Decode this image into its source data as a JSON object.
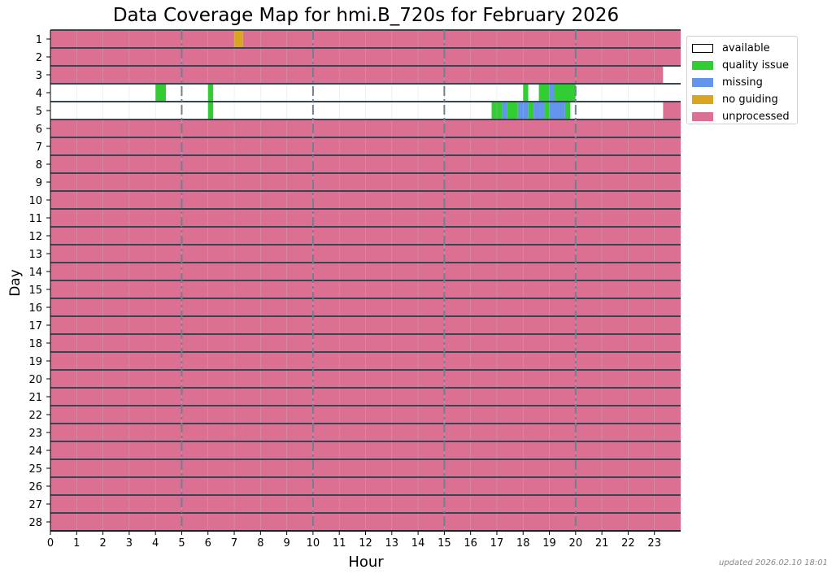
{
  "chart_data": {
    "type": "heatmap",
    "title": "Data Coverage Map for hmi.B_720s for February 2026",
    "xlabel": "Hour",
    "ylabel": "Day",
    "xlim": [
      0,
      24
    ],
    "x_ticks": [
      "0",
      "1",
      "2",
      "3",
      "4",
      "5",
      "6",
      "7",
      "8",
      "9",
      "10",
      "11",
      "12",
      "13",
      "14",
      "15",
      "16",
      "17",
      "18",
      "19",
      "20",
      "21",
      "22",
      "23"
    ],
    "days": [
      "1",
      "2",
      "3",
      "4",
      "5",
      "6",
      "7",
      "8",
      "9",
      "10",
      "11",
      "12",
      "13",
      "14",
      "15",
      "16",
      "17",
      "18",
      "19",
      "20",
      "21",
      "22",
      "23",
      "24",
      "25",
      "26",
      "27",
      "28"
    ],
    "legend": [
      {
        "name": "available",
        "color": "#ffffff"
      },
      {
        "name": "quality issue",
        "color": "#32cd32"
      },
      {
        "name": "missing",
        "color": "#6495ed"
      },
      {
        "name": "no guiding",
        "color": "#daa520"
      },
      {
        "name": "unprocessed",
        "color": "#db7093"
      }
    ],
    "legend_position": "upper right, outside plot",
    "guide_lines_hours": [
      5,
      10,
      15,
      20
    ],
    "segments": [
      {
        "day": 1,
        "start": 0,
        "end": 7.0,
        "status": "unprocessed"
      },
      {
        "day": 1,
        "start": 7.0,
        "end": 7.33,
        "status": "no guiding"
      },
      {
        "day": 1,
        "start": 7.33,
        "end": 24,
        "status": "unprocessed"
      },
      {
        "day": 2,
        "start": 0,
        "end": 24,
        "status": "unprocessed"
      },
      {
        "day": 3,
        "start": 0,
        "end": 23.33,
        "status": "unprocessed"
      },
      {
        "day": 3,
        "start": 23.33,
        "end": 24,
        "status": "available"
      },
      {
        "day": 4,
        "start": 0,
        "end": 4.0,
        "status": "available"
      },
      {
        "day": 4,
        "start": 4.0,
        "end": 4.4,
        "status": "quality issue"
      },
      {
        "day": 4,
        "start": 4.4,
        "end": 6.0,
        "status": "available"
      },
      {
        "day": 4,
        "start": 6.0,
        "end": 6.2,
        "status": "quality issue"
      },
      {
        "day": 4,
        "start": 6.2,
        "end": 18.0,
        "status": "available"
      },
      {
        "day": 4,
        "start": 18.0,
        "end": 18.2,
        "status": "quality issue"
      },
      {
        "day": 4,
        "start": 18.2,
        "end": 18.6,
        "status": "available"
      },
      {
        "day": 4,
        "start": 18.6,
        "end": 19.0,
        "status": "quality issue"
      },
      {
        "day": 4,
        "start": 19.0,
        "end": 19.2,
        "status": "missing"
      },
      {
        "day": 4,
        "start": 19.2,
        "end": 20.0,
        "status": "quality issue"
      },
      {
        "day": 4,
        "start": 20.0,
        "end": 24,
        "status": "available"
      },
      {
        "day": 5,
        "start": 0,
        "end": 6.0,
        "status": "available"
      },
      {
        "day": 5,
        "start": 6.0,
        "end": 6.2,
        "status": "quality issue"
      },
      {
        "day": 5,
        "start": 6.2,
        "end": 16.8,
        "status": "available"
      },
      {
        "day": 5,
        "start": 16.8,
        "end": 17.2,
        "status": "quality issue"
      },
      {
        "day": 5,
        "start": 17.2,
        "end": 17.4,
        "status": "missing"
      },
      {
        "day": 5,
        "start": 17.4,
        "end": 17.8,
        "status": "quality issue"
      },
      {
        "day": 5,
        "start": 17.8,
        "end": 18.2,
        "status": "missing"
      },
      {
        "day": 5,
        "start": 18.2,
        "end": 18.4,
        "status": "quality issue"
      },
      {
        "day": 5,
        "start": 18.4,
        "end": 18.8,
        "status": "missing"
      },
      {
        "day": 5,
        "start": 18.8,
        "end": 19.0,
        "status": "quality issue"
      },
      {
        "day": 5,
        "start": 19.0,
        "end": 19.6,
        "status": "missing"
      },
      {
        "day": 5,
        "start": 19.6,
        "end": 19.8,
        "status": "quality issue"
      },
      {
        "day": 5,
        "start": 19.8,
        "end": 23.33,
        "status": "available"
      },
      {
        "day": 5,
        "start": 23.33,
        "end": 24,
        "status": "unprocessed"
      },
      {
        "day": 6,
        "start": 0,
        "end": 24,
        "status": "unprocessed"
      },
      {
        "day": 7,
        "start": 0,
        "end": 24,
        "status": "unprocessed"
      },
      {
        "day": 8,
        "start": 0,
        "end": 24,
        "status": "unprocessed"
      },
      {
        "day": 9,
        "start": 0,
        "end": 24,
        "status": "unprocessed"
      },
      {
        "day": 10,
        "start": 0,
        "end": 24,
        "status": "unprocessed"
      },
      {
        "day": 11,
        "start": 0,
        "end": 24,
        "status": "unprocessed"
      },
      {
        "day": 12,
        "start": 0,
        "end": 24,
        "status": "unprocessed"
      },
      {
        "day": 13,
        "start": 0,
        "end": 24,
        "status": "unprocessed"
      },
      {
        "day": 14,
        "start": 0,
        "end": 24,
        "status": "unprocessed"
      },
      {
        "day": 15,
        "start": 0,
        "end": 24,
        "status": "unprocessed"
      },
      {
        "day": 16,
        "start": 0,
        "end": 24,
        "status": "unprocessed"
      },
      {
        "day": 17,
        "start": 0,
        "end": 24,
        "status": "unprocessed"
      },
      {
        "day": 18,
        "start": 0,
        "end": 24,
        "status": "unprocessed"
      },
      {
        "day": 19,
        "start": 0,
        "end": 24,
        "status": "unprocessed"
      },
      {
        "day": 20,
        "start": 0,
        "end": 24,
        "status": "unprocessed"
      },
      {
        "day": 21,
        "start": 0,
        "end": 24,
        "status": "unprocessed"
      },
      {
        "day": 22,
        "start": 0,
        "end": 24,
        "status": "unprocessed"
      },
      {
        "day": 23,
        "start": 0,
        "end": 24,
        "status": "unprocessed"
      },
      {
        "day": 24,
        "start": 0,
        "end": 24,
        "status": "unprocessed"
      },
      {
        "day": 25,
        "start": 0,
        "end": 24,
        "status": "unprocessed"
      },
      {
        "day": 26,
        "start": 0,
        "end": 24,
        "status": "unprocessed"
      },
      {
        "day": 27,
        "start": 0,
        "end": 24,
        "status": "unprocessed"
      },
      {
        "day": 28,
        "start": 0,
        "end": 24,
        "status": "unprocessed"
      }
    ]
  },
  "footer": {
    "updated": "updated 2026.02.10 18:01"
  }
}
